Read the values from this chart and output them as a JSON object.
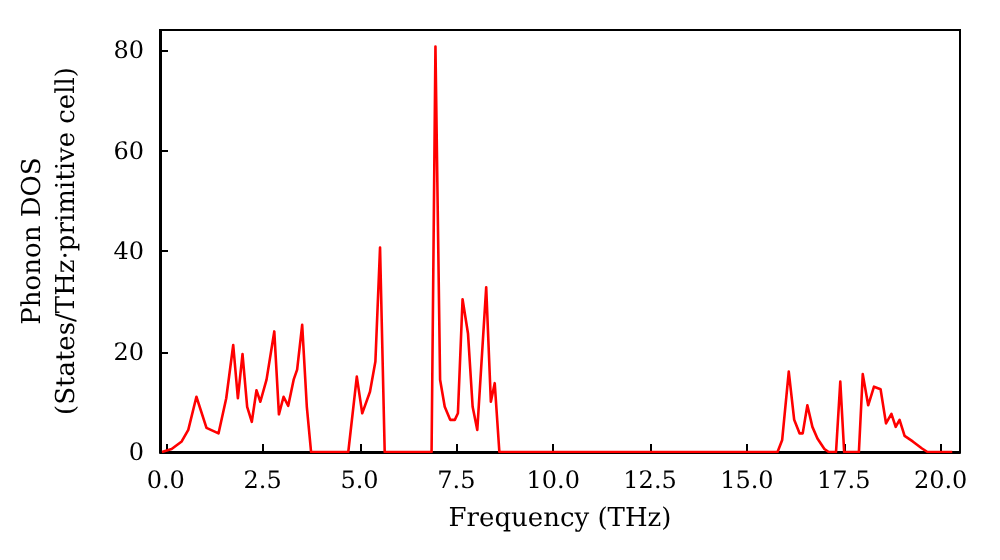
{
  "chart_data": {
    "type": "line",
    "xlabel": "Frequency (THz)",
    "ylabel": "Phonon DOS\n(States/THz·primitive cell)",
    "xlim": [
      -0.15,
      20.5
    ],
    "ylim": [
      0,
      84
    ],
    "xticks": [
      {
        "value": 0,
        "label": "0.0"
      },
      {
        "value": 2.5,
        "label": "2.5"
      },
      {
        "value": 5,
        "label": "5.0"
      },
      {
        "value": 7.5,
        "label": "7.5"
      },
      {
        "value": 10,
        "label": "10.0"
      },
      {
        "value": 12.5,
        "label": "12.5"
      },
      {
        "value": 15,
        "label": "15.0"
      },
      {
        "value": 17.5,
        "label": "17.5"
      },
      {
        "value": 20,
        "label": "20.0"
      }
    ],
    "yticks": [
      0,
      20,
      40,
      60,
      80
    ],
    "marker": "none",
    "line_style": "solid",
    "series": [
      {
        "color": "#ff0000",
        "x": [
          -0.1,
          0.15,
          0.41,
          0.58,
          0.79,
          1.05,
          1.36,
          1.56,
          1.74,
          1.86,
          1.98,
          2.1,
          2.22,
          2.34,
          2.44,
          2.6,
          2.8,
          2.92,
          3.04,
          3.16,
          3.3,
          3.39,
          3.52,
          3.64,
          3.75,
          4.71,
          4.93,
          5.07,
          5.27,
          5.41,
          5.53,
          5.65,
          6.86,
          6.96,
          7.08,
          7.2,
          7.34,
          7.46,
          7.54,
          7.66,
          7.8,
          7.92,
          8.04,
          8.27,
          8.39,
          8.49,
          8.61,
          15.79,
          15.91,
          16.08,
          16.22,
          16.36,
          16.44,
          16.56,
          16.69,
          16.82,
          17.0,
          17.11,
          17.3,
          17.41,
          17.51,
          17.89,
          17.99,
          18.13,
          18.28,
          18.45,
          18.59,
          18.73,
          18.84,
          18.94,
          19.07,
          19.28,
          19.52,
          19.66,
          20.3
        ],
        "values": [
          0,
          0.6,
          2.1,
          4.4,
          11,
          4.8,
          3.7,
          10.7,
          21.3,
          10.7,
          19.5,
          9,
          6,
          12.3,
          10,
          14.4,
          24,
          7.5,
          11,
          9.2,
          14.4,
          16.4,
          25.3,
          9,
          0,
          0,
          15,
          7.7,
          12,
          18,
          40.7,
          0,
          0,
          80.7,
          14.4,
          9,
          6.4,
          6.4,
          7.7,
          30.4,
          23.6,
          9,
          4.4,
          32.8,
          10,
          13.7,
          0,
          0,
          2.4,
          16,
          6.4,
          3.7,
          3.7,
          9.3,
          5,
          2.7,
          0.6,
          0,
          0,
          14,
          0,
          0,
          15.5,
          9.3,
          13,
          12.5,
          5.7,
          7.6,
          5,
          6.4,
          3.2,
          2.1,
          0.7,
          0,
          0
        ]
      }
    ]
  }
}
